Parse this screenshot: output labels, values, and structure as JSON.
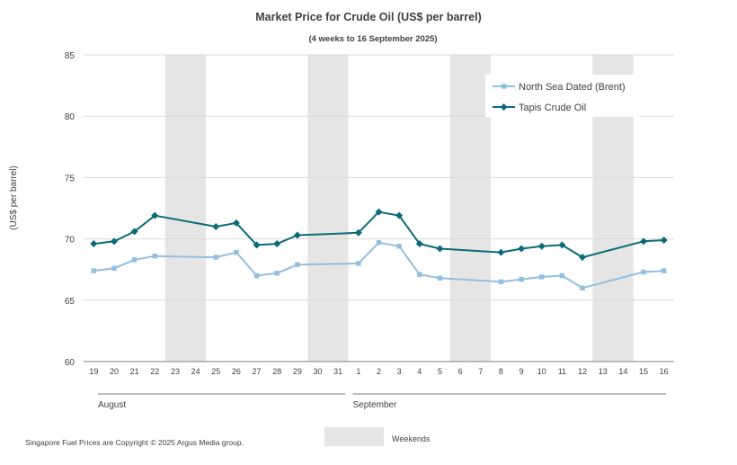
{
  "chart_data": {
    "type": "line",
    "title": "Market Price for Crude Oil (US$ per barrel)",
    "subtitle": "(4 weeks to 16 September 2025)",
    "ylabel": "(US$ per barrel)",
    "ylim": [
      60,
      85
    ],
    "yticks": [
      60,
      65,
      70,
      75,
      80,
      85
    ],
    "grid": true,
    "legend_position": "top-right",
    "x": [
      "19",
      "20",
      "21",
      "22",
      "23",
      "24",
      "25",
      "26",
      "27",
      "28",
      "29",
      "30",
      "31",
      "1",
      "2",
      "3",
      "4",
      "5",
      "6",
      "7",
      "8",
      "9",
      "10",
      "11",
      "12",
      "13",
      "14",
      "15",
      "16"
    ],
    "month_groups": [
      {
        "label": "August",
        "from": "19",
        "to": "31"
      },
      {
        "label": "September",
        "from": "1",
        "to": "16"
      }
    ],
    "weekends": [
      [
        "23",
        "24"
      ],
      [
        "30",
        "31"
      ],
      [
        "6",
        "7"
      ],
      [
        "13",
        "14"
      ]
    ],
    "series": [
      {
        "name": "North Sea Dated (Brent)",
        "color": "#92bedf",
        "marker": "square",
        "values": [
          67.4,
          67.6,
          68.3,
          68.6,
          null,
          null,
          68.5,
          68.9,
          67.0,
          67.2,
          67.9,
          null,
          null,
          68.0,
          69.7,
          69.4,
          67.1,
          66.8,
          null,
          null,
          66.5,
          66.7,
          66.9,
          67.0,
          66.0,
          null,
          null,
          67.3,
          67.4
        ]
      },
      {
        "name": "Tapis Crude Oil",
        "color": "#0b6a7a",
        "marker": "diamond",
        "values": [
          69.6,
          69.8,
          70.6,
          71.9,
          null,
          null,
          71.0,
          71.3,
          69.5,
          69.6,
          70.3,
          null,
          null,
          70.5,
          72.2,
          71.9,
          69.6,
          69.2,
          null,
          null,
          68.9,
          69.2,
          69.4,
          69.5,
          68.5,
          null,
          null,
          69.8,
          69.9
        ]
      }
    ],
    "weekend_legend": "Weekends",
    "footer": "Singapore Fuel Prices are Copyright © 2025 Argus Media group."
  },
  "colors": {
    "weekend": "#e5e5e5",
    "grid": "#d9d9d9",
    "text": "#404040",
    "axis": "#808080"
  }
}
